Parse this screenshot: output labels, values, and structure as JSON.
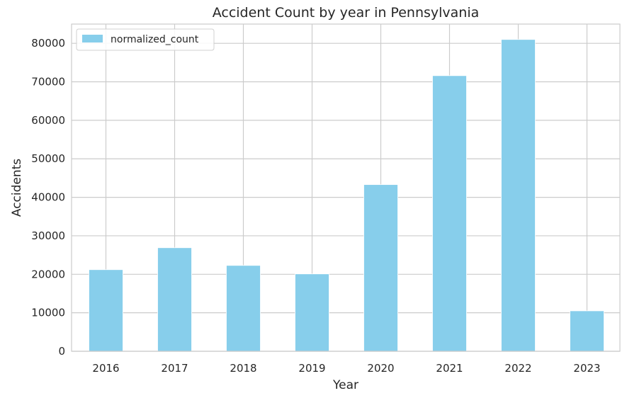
{
  "chart_data": {
    "type": "bar",
    "title": "Accident Count by year in Pennsylvania",
    "xlabel": "Year",
    "ylabel": "Accidents",
    "categories": [
      "2016",
      "2017",
      "2018",
      "2019",
      "2020",
      "2021",
      "2022",
      "2023"
    ],
    "series": [
      {
        "name": "normalized_count",
        "values": [
          21200,
          26900,
          22300,
          20100,
          43300,
          71600,
          81000,
          10500
        ],
        "color": "#87CEEB"
      }
    ],
    "ylim": [
      0,
      85000
    ],
    "yticks": [
      0,
      10000,
      20000,
      30000,
      40000,
      50000,
      60000,
      70000,
      80000
    ],
    "grid": true,
    "legend_position": "top-left"
  }
}
